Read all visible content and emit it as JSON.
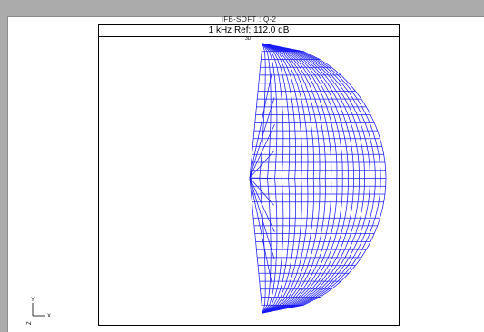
{
  "document": {
    "title": "IFB-SOFT : Q-2"
  },
  "chart": {
    "header": "1 kHz Ref: 112.0 dB",
    "mode_label": "3D",
    "line_color": "#1a1aff"
  },
  "axes_indicator": {
    "y_label": "Y",
    "x_label": "X",
    "z_label": "Z"
  }
}
